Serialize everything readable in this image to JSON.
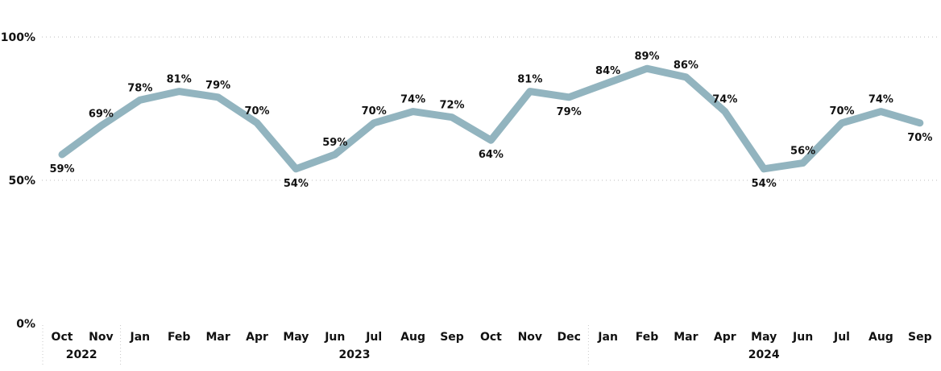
{
  "chart_data": {
    "type": "line",
    "title": "",
    "xlabel": "",
    "ylabel": "",
    "ylim": [
      0,
      100
    ],
    "y_ticks": [
      "0%",
      "50%",
      "100%"
    ],
    "grid": "horizontal dotted",
    "line_color": "#92b4bf",
    "categories": [
      "Oct",
      "Nov",
      "Jan",
      "Feb",
      "Mar",
      "Apr",
      "May",
      "Jun",
      "Jul",
      "Aug",
      "Sep",
      "Oct",
      "Nov",
      "Dec",
      "Jan",
      "Feb",
      "Mar",
      "Apr",
      "May",
      "Jun",
      "Jul",
      "Aug",
      "Sep"
    ],
    "year_groups": [
      {
        "label": "2022",
        "count": 2
      },
      {
        "label": "2023",
        "count": 12
      },
      {
        "label": "2024",
        "count": 9
      }
    ],
    "series": [
      {
        "values": [
          59,
          69,
          78,
          81,
          79,
          70,
          54,
          59,
          70,
          74,
          72,
          64,
          81,
          79,
          84,
          89,
          86,
          74,
          54,
          56,
          70,
          74,
          70
        ],
        "labels": [
          "59%",
          "69%",
          "78%",
          "81%",
          "79%",
          "70%",
          "54%",
          "59%",
          "70%",
          "74%",
          "72%",
          "64%",
          "81%",
          "79%",
          "84%",
          "89%",
          "86%",
          "74%",
          "54%",
          "56%",
          "70%",
          "74%",
          "70%"
        ],
        "label_position": [
          "below",
          "above",
          "above",
          "above",
          "above",
          "above",
          "below",
          "above",
          "above",
          "above",
          "above",
          "below",
          "above",
          "below",
          "above",
          "above",
          "above",
          "above",
          "below",
          "above",
          "above",
          "above",
          "below"
        ]
      }
    ]
  }
}
